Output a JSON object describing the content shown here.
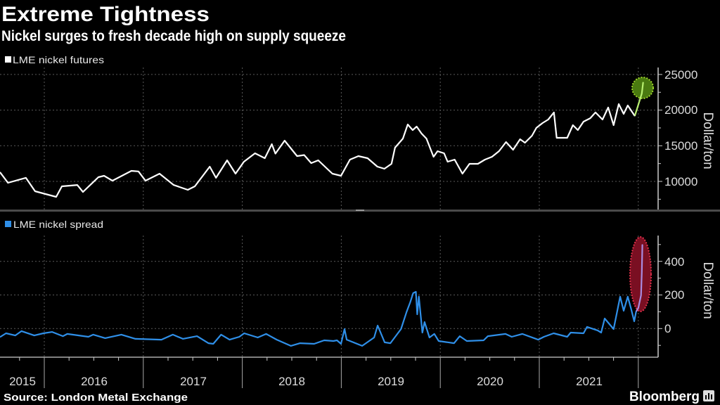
{
  "title": "Extreme Tightness",
  "subtitle": "Nickel surges to fresh decade high on supply squeeze",
  "source": "Source: London Metal Exchange",
  "brand": "Bloomberg",
  "colors": {
    "background": "#000000",
    "futures": "#ffffff",
    "spread": "#2f8fe8",
    "futures_highlight": "#b8f070",
    "futures_highlight_circle": "#4a7a10",
    "spread_highlight": "#a98be0",
    "spread_highlight_ellipse": "#7a0f22"
  },
  "chart_data": [
    {
      "type": "line",
      "legend": "LME nickel futures",
      "ylabel": "Dollar/ton",
      "ylim": [
        6000,
        26000
      ],
      "yticks": [
        10000,
        15000,
        20000,
        25000
      ],
      "yticklabels": [
        "10000",
        "15000",
        "20000",
        "25000"
      ],
      "xlim": [
        "2015-07-22",
        "2022-03-14"
      ],
      "grid": true,
      "legend_position": "top-left",
      "highlight": "last values circled in green",
      "points": [
        [
          "2015-07-22",
          11280
        ],
        [
          "2015-08-20",
          9800
        ],
        [
          "2015-10-25",
          10500
        ],
        [
          "2015-11-28",
          8620
        ],
        [
          "2016-02-14",
          7830
        ],
        [
          "2016-03-06",
          9310
        ],
        [
          "2016-05-02",
          9500
        ],
        [
          "2016-05-23",
          8520
        ],
        [
          "2016-07-19",
          10590
        ],
        [
          "2016-08-09",
          10790
        ],
        [
          "2016-09-09",
          10100
        ],
        [
          "2016-11-18",
          11480
        ],
        [
          "2016-12-14",
          11400
        ],
        [
          "2017-01-09",
          10100
        ],
        [
          "2017-03-02",
          11080
        ],
        [
          "2017-04-23",
          9500
        ],
        [
          "2017-06-14",
          8820
        ],
        [
          "2017-07-10",
          9310
        ],
        [
          "2017-09-03",
          12070
        ],
        [
          "2017-09-26",
          10500
        ],
        [
          "2017-11-06",
          12960
        ],
        [
          "2017-12-07",
          11080
        ],
        [
          "2018-01-07",
          12760
        ],
        [
          "2018-02-17",
          13940
        ],
        [
          "2018-03-25",
          13250
        ],
        [
          "2018-04-20",
          15230
        ],
        [
          "2018-05-03",
          13900
        ],
        [
          "2018-06-06",
          15720
        ],
        [
          "2018-07-22",
          13550
        ],
        [
          "2018-08-17",
          13700
        ],
        [
          "2018-09-12",
          12560
        ],
        [
          "2018-10-08",
          12960
        ],
        [
          "2018-11-29",
          11080
        ],
        [
          "2018-12-31",
          10790
        ],
        [
          "2019-02-02",
          13060
        ],
        [
          "2019-03-05",
          13550
        ],
        [
          "2019-04-08",
          13250
        ],
        [
          "2019-05-14",
          12070
        ],
        [
          "2019-06-09",
          11780
        ],
        [
          "2019-07-05",
          12470
        ],
        [
          "2019-07-18",
          14730
        ],
        [
          "2019-08-16",
          16010
        ],
        [
          "2019-09-03",
          17990
        ],
        [
          "2019-09-21",
          17200
        ],
        [
          "2019-10-06",
          17690
        ],
        [
          "2019-10-24",
          16710
        ],
        [
          "2019-11-11",
          16010
        ],
        [
          "2019-12-07",
          13450
        ],
        [
          "2019-12-22",
          14240
        ],
        [
          "2020-01-15",
          13940
        ],
        [
          "2020-01-28",
          12760
        ],
        [
          "2020-02-23",
          13060
        ],
        [
          "2020-03-23",
          11080
        ],
        [
          "2020-04-18",
          12470
        ],
        [
          "2020-05-19",
          12470
        ],
        [
          "2020-06-14",
          13060
        ],
        [
          "2020-07-10",
          13450
        ],
        [
          "2020-08-05",
          14240
        ],
        [
          "2020-08-31",
          15520
        ],
        [
          "2020-09-26",
          14440
        ],
        [
          "2020-10-22",
          15920
        ],
        [
          "2020-11-09",
          15420
        ],
        [
          "2020-12-05",
          16410
        ],
        [
          "2020-12-21",
          17500
        ],
        [
          "2021-01-13",
          18190
        ],
        [
          "2021-02-03",
          18680
        ],
        [
          "2021-02-24",
          19670
        ],
        [
          "2021-03-06",
          16110
        ],
        [
          "2021-04-14",
          16110
        ],
        [
          "2021-05-05",
          17890
        ],
        [
          "2021-05-23",
          17200
        ],
        [
          "2021-06-13",
          18380
        ],
        [
          "2021-07-08",
          18870
        ],
        [
          "2021-07-27",
          19670
        ],
        [
          "2021-08-22",
          18680
        ],
        [
          "2021-09-12",
          20360
        ],
        [
          "2021-10-02",
          17890
        ],
        [
          "2021-10-21",
          20850
        ],
        [
          "2021-11-08",
          19470
        ],
        [
          "2021-11-23",
          20650
        ],
        [
          "2021-12-19",
          19180
        ],
        [
          "2022-01-06",
          21340
        ],
        [
          "2022-01-14",
          22330
        ],
        [
          "2022-01-19",
          23910
        ]
      ]
    },
    {
      "type": "line",
      "legend": "LME nickel spread",
      "ylabel": "Dollar/ton",
      "ylim": [
        -160,
        550
      ],
      "yticks": [
        0,
        200,
        400
      ],
      "yticklabels": [
        "0",
        "200",
        "400"
      ],
      "xlim": [
        "2015-07-22",
        "2022-03-14"
      ],
      "xticklabels": [
        "2015",
        "2016",
        "2017",
        "2018",
        "2019",
        "2020",
        "2021"
      ],
      "grid": true,
      "legend_position": "top-left",
      "highlight": "last values circled in red",
      "points": [
        [
          "2015-07-22",
          -50
        ],
        [
          "2015-08-13",
          -28
        ],
        [
          "2015-09-16",
          -41
        ],
        [
          "2015-10-09",
          -15
        ],
        [
          "2015-11-25",
          -41
        ],
        [
          "2015-12-29",
          -28
        ],
        [
          "2016-01-30",
          -20
        ],
        [
          "2016-03-10",
          -45
        ],
        [
          "2016-03-26",
          -32
        ],
        [
          "2016-06-12",
          -49
        ],
        [
          "2016-06-30",
          -36
        ],
        [
          "2016-08-13",
          -57
        ],
        [
          "2016-10-12",
          -36
        ],
        [
          "2016-12-03",
          -61
        ],
        [
          "2017-03-09",
          -66
        ],
        [
          "2017-04-20",
          -36
        ],
        [
          "2017-05-27",
          -61
        ],
        [
          "2017-07-18",
          -45
        ],
        [
          "2017-08-29",
          -87
        ],
        [
          "2017-09-16",
          -91
        ],
        [
          "2017-10-15",
          -36
        ],
        [
          "2017-11-15",
          -66
        ],
        [
          "2017-12-21",
          -49
        ],
        [
          "2018-01-08",
          -28
        ],
        [
          "2018-02-27",
          -53
        ],
        [
          "2018-03-30",
          -32
        ],
        [
          "2018-05-08",
          -66
        ],
        [
          "2018-06-29",
          -103
        ],
        [
          "2018-08-02",
          -87
        ],
        [
          "2018-09-23",
          -91
        ],
        [
          "2018-10-30",
          -70
        ],
        [
          "2018-12-03",
          -74
        ],
        [
          "2018-12-16",
          -70
        ],
        [
          "2018-12-31",
          -91
        ],
        [
          "2019-01-13",
          -3
        ],
        [
          "2019-01-21",
          -66
        ],
        [
          "2019-03-19",
          -103
        ],
        [
          "2019-05-02",
          -53
        ],
        [
          "2019-05-15",
          18
        ],
        [
          "2019-06-10",
          -82
        ],
        [
          "2019-07-01",
          -87
        ],
        [
          "2019-08-09",
          -3
        ],
        [
          "2019-08-30",
          101
        ],
        [
          "2019-09-12",
          156
        ],
        [
          "2019-09-23",
          211
        ],
        [
          "2019-10-03",
          219
        ],
        [
          "2019-10-08",
          85
        ],
        [
          "2019-10-14",
          190
        ],
        [
          "2019-10-27",
          -24
        ],
        [
          "2019-11-04",
          39
        ],
        [
          "2019-11-22",
          -53
        ],
        [
          "2019-12-10",
          -32
        ],
        [
          "2019-12-26",
          -74
        ],
        [
          "2020-02-21",
          -87
        ],
        [
          "2020-03-13",
          -45
        ],
        [
          "2020-04-08",
          -74
        ],
        [
          "2020-06-09",
          -70
        ],
        [
          "2020-06-25",
          -45
        ],
        [
          "2020-08-29",
          -32
        ],
        [
          "2020-09-21",
          -49
        ],
        [
          "2020-10-30",
          -32
        ],
        [
          "2020-12-28",
          -66
        ],
        [
          "2021-01-18",
          -49
        ],
        [
          "2021-02-23",
          -28
        ],
        [
          "2021-04-14",
          -49
        ],
        [
          "2021-04-27",
          -24
        ],
        [
          "2021-06-13",
          -28
        ],
        [
          "2021-06-26",
          10
        ],
        [
          "2021-08-04",
          -11
        ],
        [
          "2021-08-17",
          -24
        ],
        [
          "2021-08-30",
          60
        ],
        [
          "2021-10-02",
          -3
        ],
        [
          "2021-10-26",
          190
        ],
        [
          "2021-11-08",
          106
        ],
        [
          "2021-11-23",
          190
        ],
        [
          "2021-12-06",
          114
        ],
        [
          "2021-12-17",
          43
        ],
        [
          "2021-12-24",
          101
        ],
        [
          "2022-01-01",
          122
        ],
        [
          "2022-01-11",
          198
        ],
        [
          "2022-01-14",
          336
        ],
        [
          "2022-01-16",
          500
        ]
      ]
    }
  ]
}
